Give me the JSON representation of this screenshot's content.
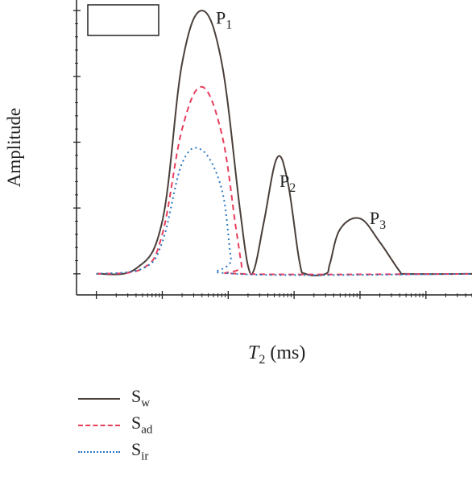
{
  "chart_data": {
    "type": "line",
    "title": "",
    "xlabel": {
      "main": "T",
      "sub": "2",
      "unit": " (ms)"
    },
    "ylabel": "Amplitude",
    "x_scale": "log",
    "grid": false,
    "legend_placement": "bottom",
    "series": [
      {
        "name": "S",
        "name_sub": "w",
        "color": "#4a3f3a",
        "style": "solid",
        "points": [
          [
            0.1,
            0
          ],
          [
            0.4,
            0.02
          ],
          [
            1,
            0.2
          ],
          [
            2,
            0.8
          ],
          [
            4,
            1.0
          ],
          [
            8,
            0.8
          ],
          [
            15,
            0.25
          ],
          [
            20,
            0.03
          ],
          [
            25,
            0.02
          ],
          [
            35,
            0.2
          ],
          [
            55,
            0.44
          ],
          [
            80,
            0.35
          ],
          [
            120,
            0.05
          ],
          [
            150,
            0
          ],
          [
            300,
            0
          ],
          [
            350,
            0.04
          ],
          [
            500,
            0.17
          ],
          [
            1000,
            0.21
          ],
          [
            2000,
            0.12
          ],
          [
            4000,
            0.01
          ],
          [
            5000,
            0
          ],
          [
            50000,
            0
          ]
        ]
      },
      {
        "name": "S",
        "name_sub": "ad",
        "color": "#e83d5c",
        "style": "dashed",
        "points": [
          [
            0.1,
            0
          ],
          [
            0.5,
            0.02
          ],
          [
            1,
            0.15
          ],
          [
            2,
            0.55
          ],
          [
            4,
            0.71
          ],
          [
            8,
            0.53
          ],
          [
            13,
            0.18
          ],
          [
            16,
            0.03
          ],
          [
            17,
            0
          ],
          [
            50000,
            0
          ]
        ]
      },
      {
        "name": "S",
        "name_sub": "ir",
        "color": "#2a78c2",
        "style": "dotted",
        "points": [
          [
            0.1,
            0
          ],
          [
            0.5,
            0.02
          ],
          [
            1,
            0.12
          ],
          [
            2,
            0.42
          ],
          [
            4,
            0.47
          ],
          [
            8,
            0.32
          ],
          [
            11,
            0.06
          ],
          [
            13,
            0
          ],
          [
            50000,
            0
          ]
        ]
      }
    ],
    "annotations": [
      {
        "text": "P",
        "sub": "1",
        "x": 6.5,
        "y": 0.95
      },
      {
        "text": "P",
        "sub": "2",
        "x": 60,
        "y": 0.33
      },
      {
        "text": "P",
        "sub": "3",
        "x": 1400,
        "y": 0.19
      }
    ],
    "xlim": [
      0.05,
      50000
    ],
    "ylim": [
      -0.08,
      1.04
    ]
  }
}
